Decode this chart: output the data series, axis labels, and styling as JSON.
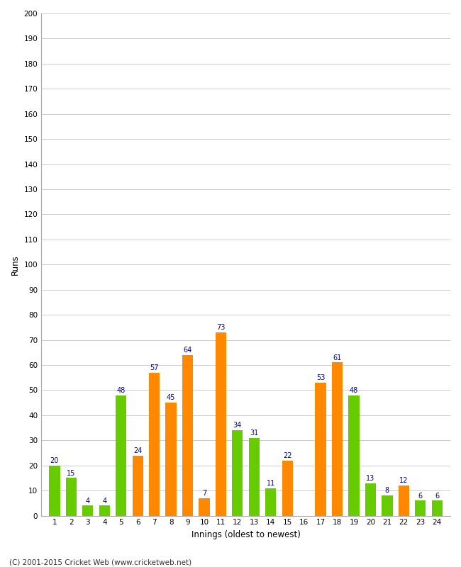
{
  "runs": [
    20,
    15,
    4,
    4,
    48,
    24,
    57,
    45,
    64,
    7,
    73,
    34,
    31,
    11,
    22,
    0,
    53,
    61,
    48,
    13,
    8,
    12,
    6,
    6
  ],
  "colors": [
    "#66cc00",
    "#66cc00",
    "#66cc00",
    "#66cc00",
    "#66cc00",
    "#ff8800",
    "#ff8800",
    "#ff8800",
    "#ff8800",
    "#ff8800",
    "#ff8800",
    "#66cc00",
    "#66cc00",
    "#66cc00",
    "#ff8800",
    "#66cc00",
    "#ff8800",
    "#ff8800",
    "#66cc00",
    "#66cc00",
    "#66cc00",
    "#ff8800",
    "#66cc00",
    "#66cc00"
  ],
  "innings_labels": [
    "1",
    "2",
    "3",
    "4",
    "5",
    "6",
    "7",
    "8",
    "9",
    "10",
    "11",
    "12",
    "13",
    "14",
    "15",
    "16",
    "17",
    "18",
    "19",
    "20",
    "21",
    "22",
    "23",
    "24"
  ],
  "xlabel": "Innings (oldest to newest)",
  "ylabel": "Runs",
  "ylim": [
    0,
    200
  ],
  "yticks": [
    0,
    10,
    20,
    30,
    40,
    50,
    60,
    70,
    80,
    90,
    100,
    110,
    120,
    130,
    140,
    150,
    160,
    170,
    180,
    190,
    200
  ],
  "label_color": "#000099",
  "background_color": "#ffffff",
  "grid_color": "#cccccc",
  "footer": "(C) 2001-2015 Cricket Web (www.cricketweb.net)"
}
